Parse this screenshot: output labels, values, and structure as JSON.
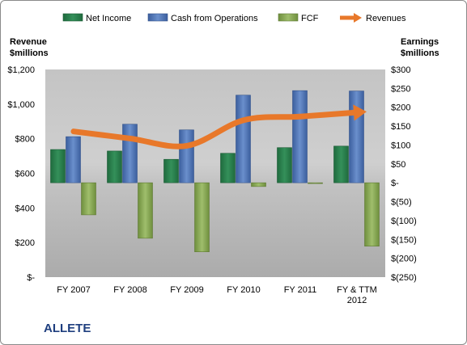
{
  "company": "ALLETE",
  "chart_data": {
    "type": "bar",
    "categories": [
      "FY 2007",
      "FY 2008",
      "FY 2009",
      "FY 2010",
      "FY 2011",
      "FY & TTM 2012"
    ],
    "left_axis": {
      "title": [
        "Revenue",
        "$millions"
      ],
      "range": [
        0,
        1200
      ],
      "ticks": [
        0,
        200,
        400,
        600,
        800,
        1000,
        1200
      ],
      "tick_labels": [
        "$-",
        "$200",
        "$400",
        "$600",
        "$800",
        "$1,000",
        "$1,200"
      ]
    },
    "right_axis": {
      "title": [
        "Earnings",
        "$millions"
      ],
      "range": [
        -250,
        300
      ],
      "ticks": [
        -250,
        -200,
        -150,
        -100,
        -50,
        0,
        50,
        100,
        150,
        200,
        250,
        300
      ],
      "tick_labels": [
        "$(250)",
        "$(200)",
        "$(150)",
        "$(100)",
        "$(50)",
        "$-",
        "$50",
        "$100",
        "$150",
        "$200",
        "$250",
        "$300"
      ]
    },
    "series": [
      {
        "name": "Net Income",
        "type": "bar",
        "axis": "right",
        "color": "#2a7a4a",
        "values": [
          88,
          84,
          62,
          78,
          93,
          97
        ]
      },
      {
        "name": "Cash from Operations",
        "type": "bar",
        "axis": "right",
        "color": "#4f74b4",
        "values": [
          122,
          155,
          140,
          232,
          244,
          243
        ]
      },
      {
        "name": "FCF",
        "type": "bar",
        "axis": "right",
        "color": "#8aab5a",
        "values": [
          -85,
          -147,
          -183,
          -10,
          -2,
          -168
        ]
      },
      {
        "name": "Revenues",
        "type": "line",
        "axis": "left",
        "color": "#e8782a",
        "values": [
          842,
          801,
          759,
          907,
          928,
          952
        ]
      }
    ],
    "legend_position": "top",
    "grid": false
  }
}
